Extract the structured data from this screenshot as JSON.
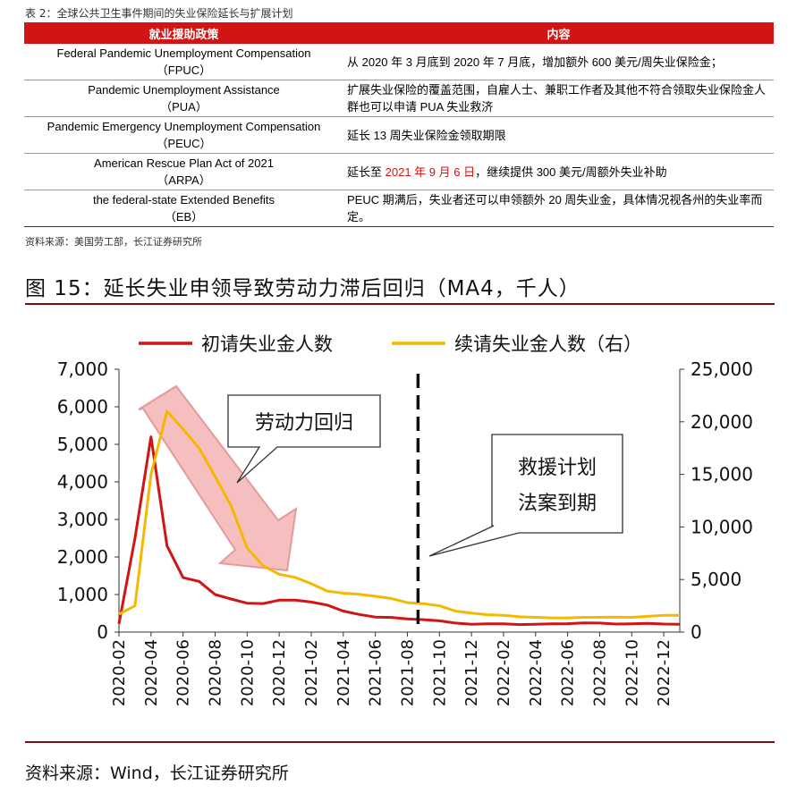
{
  "table": {
    "caption": "表 2：全球公共卫生事件期间的失业保险延长与扩展计划",
    "headers": [
      "就业援助政策",
      "内容"
    ],
    "rows": [
      {
        "policy": "Federal Pandemic Unemployment Compensation",
        "abbr": "（FPUC）",
        "pre": "从 2020 年 3 月底到 2020 年 7 月底，增加额外 600 美元/周失业保险金；",
        "red": "",
        "post": ""
      },
      {
        "policy": "Pandemic Unemployment Assistance",
        "abbr": "（PUA）",
        "pre": "扩展失业保险的覆盖范围，自雇人士、兼职工作者及其他不符合领取失业保险金人群也可以申请 PUA 失业救济",
        "red": "",
        "post": ""
      },
      {
        "policy": "Pandemic Emergency Unemployment Compensation",
        "abbr": "（PEUC）",
        "pre": "延长 13 周失业保险金领取期限",
        "red": "",
        "post": ""
      },
      {
        "policy": "American Rescue Plan Act of 2021",
        "abbr": "（ARPA）",
        "pre": "延长至 ",
        "red": "2021 年 9 月 6 日",
        "post": "，继续提供 300 美元/周额外失业补助"
      },
      {
        "policy": "the federal-state Extended Benefits",
        "abbr": "（EB）",
        "pre": "PEUC 期满后，失业者还可以申领额外 20 周失业金，具体情况视各州的失业率而定。",
        "red": "",
        "post": ""
      }
    ],
    "source": "资料来源：美国劳工部，长江证券研究所"
  },
  "figure": {
    "title": "图 15：延长失业申领导致劳动力滞后回归（MA4，千人）",
    "source": "资料来源：Wind，长江证券研究所",
    "callout_arrow": "劳动力回归",
    "callout_dashed": [
      "救援计划",
      "法案到期"
    ]
  },
  "chart_data": {
    "type": "line",
    "x": [
      "2020-02",
      "2020-03",
      "2020-04",
      "2020-05",
      "2020-06",
      "2020-07",
      "2020-08",
      "2020-09",
      "2020-10",
      "2020-11",
      "2020-12",
      "2021-01",
      "2021-02",
      "2021-03",
      "2021-04",
      "2021-05",
      "2021-06",
      "2021-07",
      "2021-08",
      "2021-09",
      "2021-10",
      "2021-11",
      "2021-12",
      "2022-01",
      "2022-02",
      "2022-03",
      "2022-04",
      "2022-05",
      "2022-06",
      "2022-07",
      "2022-08",
      "2022-09",
      "2022-10",
      "2022-11",
      "2022-12",
      "2023-01"
    ],
    "x_tick_labels": [
      "2020-02",
      "2020-04",
      "2020-06",
      "2020-08",
      "2020-10",
      "2020-12",
      "2021-02",
      "2021-04",
      "2021-06",
      "2021-08",
      "2021-10",
      "2021-12",
      "2022-02",
      "2022-04",
      "2022-06",
      "2022-08",
      "2022-10",
      "2022-12"
    ],
    "series": [
      {
        "name": "初请失业金人数",
        "axis": "left",
        "color": "#d11414",
        "values": [
          220,
          2500,
          5200,
          2300,
          1450,
          1350,
          1000,
          880,
          770,
          760,
          850,
          850,
          800,
          720,
          560,
          470,
          400,
          390,
          350,
          330,
          300,
          240,
          210,
          220,
          220,
          200,
          210,
          220,
          225,
          245,
          240,
          215,
          220,
          230,
          215,
          210
        ]
      },
      {
        "name": "续请失业金人数（右）",
        "axis": "right",
        "color": "#f5b800",
        "values": [
          1700,
          2500,
          15000,
          21000,
          19300,
          17500,
          14800,
          12000,
          8000,
          6300,
          5500,
          5200,
          4600,
          3900,
          3700,
          3600,
          3400,
          3200,
          2800,
          2700,
          2500,
          2000,
          1800,
          1650,
          1600,
          1450,
          1400,
          1350,
          1350,
          1400,
          1400,
          1420,
          1400,
          1500,
          1600,
          1600
        ]
      }
    ],
    "left_axis": {
      "ylim": [
        0,
        7000
      ],
      "ticks": [
        "0",
        "1,000",
        "2,000",
        "3,000",
        "4,000",
        "5,000",
        "6,000",
        "7,000"
      ]
    },
    "right_axis": {
      "ylim": [
        0,
        25000
      ],
      "ticks": [
        "0",
        "5,000",
        "10,000",
        "15,000",
        "20,000",
        "25,000"
      ]
    },
    "event_line_x": "2021-09",
    "legend_position": "top",
    "grid": false,
    "colors": {
      "accent": "#d11414",
      "arrow_fill": "#f4b4b4",
      "arrow_stroke": "#e39a9a"
    }
  }
}
